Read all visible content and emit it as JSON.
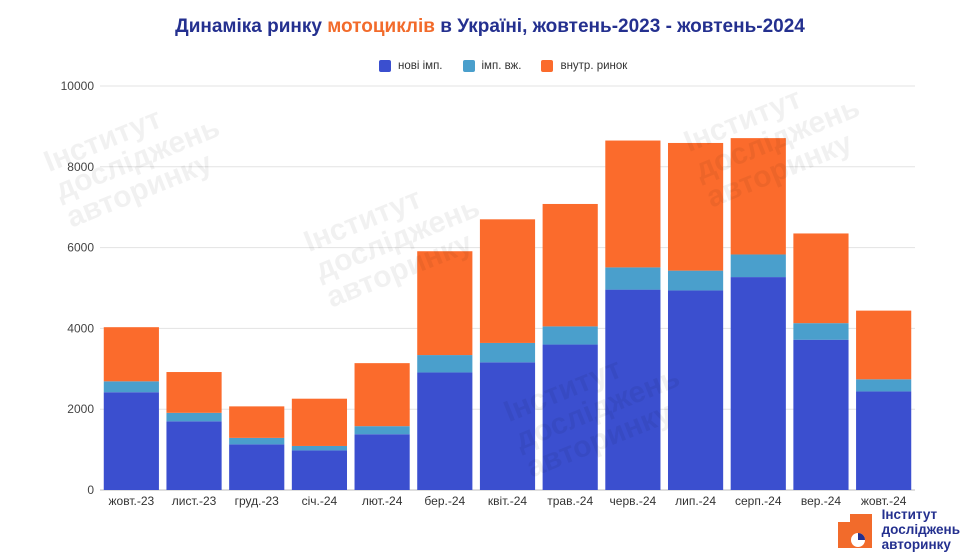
{
  "title": {
    "prefix": "Динаміка ринку ",
    "highlight": "мотоциклів",
    "suffix": " в Україні, жовтень-2023 - жовтень-2024"
  },
  "watermark_lines": [
    "Інститут",
    "досліджень",
    "авторинку"
  ],
  "brand": {
    "line1": "Інститут",
    "line2": "досліджень",
    "line3": "авторинку"
  },
  "colors": {
    "title": "#24308f",
    "accent": "#f26b2b",
    "new_import": "#3b4fcf",
    "used_import": "#4a9fcc",
    "domestic": "#fb6b2c",
    "grid": "#e3e3e3"
  },
  "chart_data": {
    "type": "bar",
    "stacked": true,
    "title": "Динаміка ринку мотоциклів в Україні, жовтень-2023 - жовтень-2024",
    "categories": [
      "жовт.-23",
      "лист.-23",
      "груд.-23",
      "січ.-24",
      "лют.-24",
      "бер.-24",
      "квіт.-24",
      "трав.-24",
      "черв.-24",
      "лип.-24",
      "серп.-24",
      "вер.-24",
      "жовт.-24"
    ],
    "series": [
      {
        "name": "нові імп.",
        "color": "#3b4fcf",
        "values": [
          2420,
          1700,
          1130,
          980,
          1380,
          2910,
          3160,
          3600,
          4960,
          4940,
          5270,
          3720,
          2440
        ]
      },
      {
        "name": "імп. вж.",
        "color": "#4a9fcc",
        "values": [
          270,
          210,
          160,
          110,
          200,
          430,
          480,
          450,
          550,
          490,
          560,
          410,
          300
        ]
      },
      {
        "name": "внутр. ринок",
        "color": "#fb6b2c",
        "values": [
          1340,
          1010,
          780,
          1170,
          1560,
          2570,
          3060,
          3030,
          3140,
          3160,
          2880,
          2220,
          1700
        ]
      }
    ],
    "xlabel": "",
    "ylabel": "",
    "ylim": [
      0,
      10000
    ],
    "yticks": [
      0,
      2000,
      4000,
      6000,
      8000,
      10000
    ],
    "grid": true,
    "legend": "top-center"
  }
}
